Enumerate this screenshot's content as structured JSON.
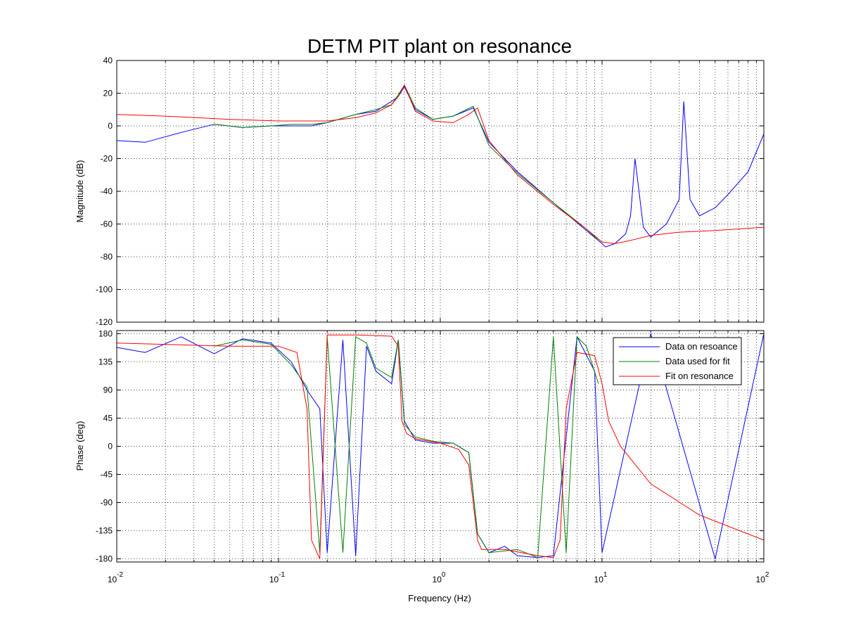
{
  "chart_data": {
    "type": "line",
    "title": "DETM PIT plant on resonance",
    "xlabel": "Frequency  (Hz)",
    "xscale": "log",
    "xlim": [
      0.01,
      100
    ],
    "x_ticks": [
      {
        "base": "10",
        "exp": "-2"
      },
      {
        "base": "10",
        "exp": "-1"
      },
      {
        "base": "10",
        "exp": "0"
      },
      {
        "base": "10",
        "exp": "1"
      },
      {
        "base": "10",
        "exp": "2"
      }
    ],
    "grid": true,
    "legend_position": "top-right",
    "colors": {
      "data_on_resonance": "#0000ff",
      "data_used_for_fit": "#008000",
      "fit_on_resonance": "#ff0000"
    },
    "panels": [
      {
        "ylabel": "Magnitude (dB)",
        "ylim": [
          -120,
          40
        ],
        "yticks": [
          "-120",
          "-100",
          "-80",
          "-60",
          "-40",
          "-20",
          "0",
          "20",
          "40"
        ],
        "series": [
          {
            "name": "Data on resoance",
            "color": "#0000ff",
            "x": [
              0.01,
              0.015,
              0.025,
              0.04,
              0.06,
              0.09,
              0.12,
              0.16,
              0.2,
              0.3,
              0.4,
              0.5,
              0.55,
              0.6,
              0.7,
              0.9,
              1.2,
              1.6,
              2.0,
              3.0,
              5.0,
              8.0,
              10.0,
              10.5,
              12,
              14,
              15,
              16,
              18,
              20,
              25,
              30,
              32,
              35,
              40,
              50,
              60,
              80,
              100
            ],
            "y": [
              -9,
              -10,
              -4,
              1,
              -1,
              0,
              0,
              0,
              2,
              7,
              9,
              15,
              18,
              24,
              10,
              4,
              6,
              11,
              -10,
              -28,
              -47,
              -64,
              -72,
              -74,
              -72,
              -66,
              -55,
              -20,
              -62,
              -68,
              -60,
              -45,
              15,
              -45,
              -55,
              -50,
              -42,
              -28,
              -5
            ]
          },
          {
            "name": "Data used for fit",
            "color": "#008000",
            "x": [
              0.04,
              0.06,
              0.09,
              0.12,
              0.16,
              0.2,
              0.3,
              0.4,
              0.5,
              0.55,
              0.6,
              0.7,
              0.9,
              1.2,
              1.6,
              2.0,
              3.0,
              5.0,
              8.0,
              9.5
            ],
            "y": [
              1,
              -1,
              0,
              1,
              1,
              2,
              7,
              10,
              13,
              19,
              25,
              11,
              4,
              6,
              12,
              -12,
              -29,
              -47,
              -63,
              -70
            ]
          },
          {
            "name": "Fit on resonance",
            "color": "#ff0000",
            "x": [
              0.01,
              0.02,
              0.05,
              0.1,
              0.2,
              0.3,
              0.4,
              0.5,
              0.55,
              0.6,
              0.7,
              0.9,
              1.2,
              1.5,
              1.7,
              2.0,
              3.0,
              5.0,
              8.0,
              10.0,
              12,
              15,
              20,
              30,
              50,
              100
            ],
            "y": [
              7,
              6,
              4,
              3,
              3,
              5,
              8,
              13,
              18,
              25,
              9,
              3,
              2,
              7,
              11,
              -9,
              -30,
              -48,
              -63,
              -71,
              -72,
              -70,
              -67,
              -65,
              -64,
              -62
            ]
          }
        ]
      },
      {
        "ylabel": "Phase (deg)",
        "ylim": [
          -185,
          185
        ],
        "yticks": [
          "-180",
          "-135",
          "-90",
          "-45",
          "0",
          "45",
          "90",
          "135",
          "180"
        ],
        "series": [
          {
            "name": "Data on resoance",
            "color": "#0000ff",
            "x": [
              0.01,
              0.015,
              0.025,
              0.04,
              0.06,
              0.09,
              0.12,
              0.15,
              0.18,
              0.2,
              0.25,
              0.3,
              0.35,
              0.4,
              0.5,
              0.55,
              0.6,
              0.7,
              0.9,
              1.2,
              1.5,
              1.7,
              2.0,
              2.5,
              3.0,
              4.0,
              5.0,
              7.0,
              9.0,
              10.0,
              20,
              50,
              100
            ],
            "y": [
              158,
              150,
              175,
              148,
              172,
              165,
              135,
              90,
              60,
              -170,
              170,
              -175,
              160,
              120,
              100,
              170,
              40,
              10,
              5,
              5,
              -10,
              -140,
              -170,
              -160,
              -175,
              -178,
              -175,
              175,
              120,
              -170,
              180,
              -180,
              180
            ]
          },
          {
            "name": "Data used for fit",
            "color": "#008000",
            "x": [
              0.04,
              0.06,
              0.09,
              0.12,
              0.15,
              0.18,
              0.2,
              0.25,
              0.3,
              0.35,
              0.4,
              0.5,
              0.55,
              0.6,
              0.7,
              0.9,
              1.2,
              1.5,
              1.7,
              2.0,
              3.0,
              4.0,
              5.0,
              6.0,
              7.0,
              8.0,
              9.5
            ],
            "y": [
              160,
              170,
              163,
              130,
              95,
              -170,
              175,
              -170,
              175,
              165,
              125,
              110,
              170,
              35,
              15,
              8,
              5,
              -10,
              -140,
              -170,
              -165,
              -178,
              175,
              -170,
              175,
              160,
              100
            ]
          },
          {
            "name": "Fit on resonance",
            "color": "#ff0000",
            "x": [
              0.01,
              0.05,
              0.1,
              0.13,
              0.15,
              0.16,
              0.18,
              0.2,
              0.3,
              0.5,
              0.55,
              0.58,
              0.62,
              0.7,
              1.0,
              1.3,
              1.5,
              1.7,
              1.8,
              2.5,
              4.0,
              5.0,
              5.5,
              6.0,
              7.0,
              9.0,
              10.0,
              11,
              13,
              20,
              40,
              100
            ],
            "y": [
              165,
              160,
              160,
              150,
              60,
              -150,
              -180,
              178,
              178,
              176,
              160,
              40,
              20,
              12,
              5,
              -5,
              -30,
              -150,
              -165,
              -165,
              -175,
              -178,
              -150,
              60,
              150,
              145,
              100,
              40,
              0,
              -60,
              -110,
              -150
            ]
          }
        ]
      }
    ]
  }
}
